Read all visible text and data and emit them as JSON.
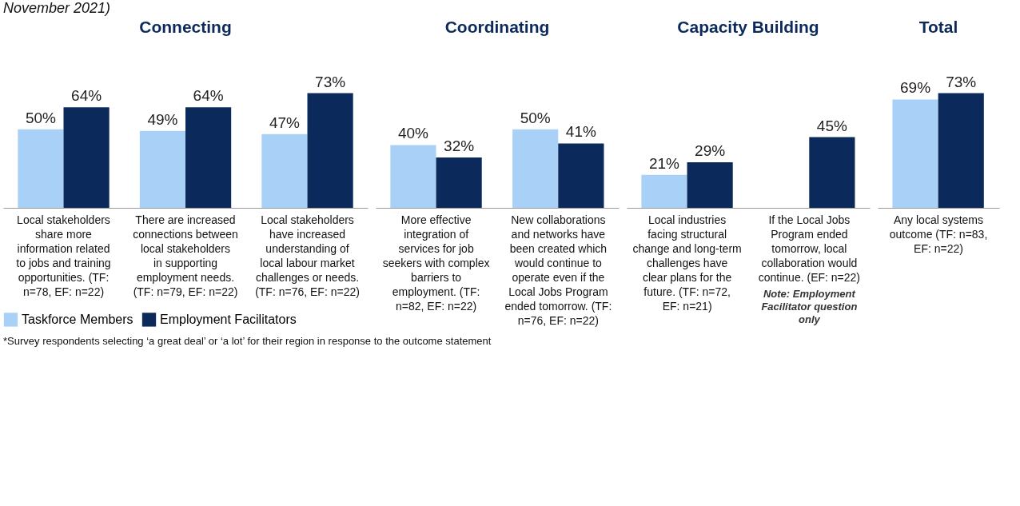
{
  "chart_data": [
    {
      "type": "bar",
      "title": "Connecting",
      "legend": "bottom left",
      "annotations": [
        "November 2021)",
        "*Survey respondents selecting ‘a great deal’ or ‘a lot’ for their region in response to the outcome statement"
      ],
      "categories": [
        "Local stakeholders share more information related to jobs and training opportunities. (TF: n=78, EF: n=22)",
        "There are increased connections between local stakeholders in supporting employment needs. (TF: n=79, EF: n=22)",
        "Local stakeholders have increased understanding of local labour market challenges or needs. (TF: n=76, EF: n=22)"
      ],
      "series": [
        {
          "name": "Taskforce Members",
          "color": "#a9d1f7",
          "values": [
            50,
            49,
            47
          ],
          "value_labels": [
            "50%",
            "49%",
            "47%"
          ]
        },
        {
          "name": "Employment Facilitators",
          "color": "#0b2a5b",
          "values": [
            64,
            64,
            73
          ],
          "value_labels": [
            "64%",
            "64%",
            "73%"
          ]
        }
      ]
    },
    {
      "type": "bar",
      "title": "Coordinating",
      "categories": [
        "More effective integration of services for job seekers with complex barriers to employment. (TF: n=82, EF: n=22)",
        "New collaborations and networks have been created which would continue to operate even if the Local Jobs Program ended tomorrow. (TF: n=76, EF: n=22)"
      ],
      "series": [
        {
          "color": "#a9d1f7",
          "values": [
            40,
            50
          ],
          "value_labels": [
            "40%",
            "50%"
          ]
        },
        {
          "color": "#0b2a5b",
          "values": [
            32,
            41
          ],
          "value_labels": [
            "32%",
            "41%"
          ]
        }
      ]
    },
    {
      "type": "bar",
      "title": "Capacity Building",
      "annotations": [
        "Note: Employment Facilitator question only"
      ],
      "categories": [
        "Local industries facing structural change and long-term challenges have clear plans for the future. (TF: n=72, EF: n=21)",
        "If the Local Jobs Program ended tomorrow, local collaboration would continue. (EF: n=22)"
      ],
      "series": [
        {
          "color": "#a9d1f7",
          "values": [
            21,
            null
          ],
          "value_labels": [
            "21%",
            null
          ]
        },
        {
          "color": "#0b2a5b",
          "values": [
            29,
            45
          ],
          "value_labels": [
            "29%",
            "45%"
          ]
        }
      ]
    },
    {
      "type": "bar",
      "title": "Total",
      "categories": [
        "Any local systems outcome (TF: n=83, EF: n=22)"
      ],
      "series": [
        {
          "color": "#a9d1f7",
          "values": [
            69
          ],
          "value_labels": [
            "69%"
          ]
        },
        {
          "color": "#0b2a5b",
          "values": [
            73
          ],
          "value_labels": [
            "73%"
          ]
        }
      ]
    }
  ]
}
